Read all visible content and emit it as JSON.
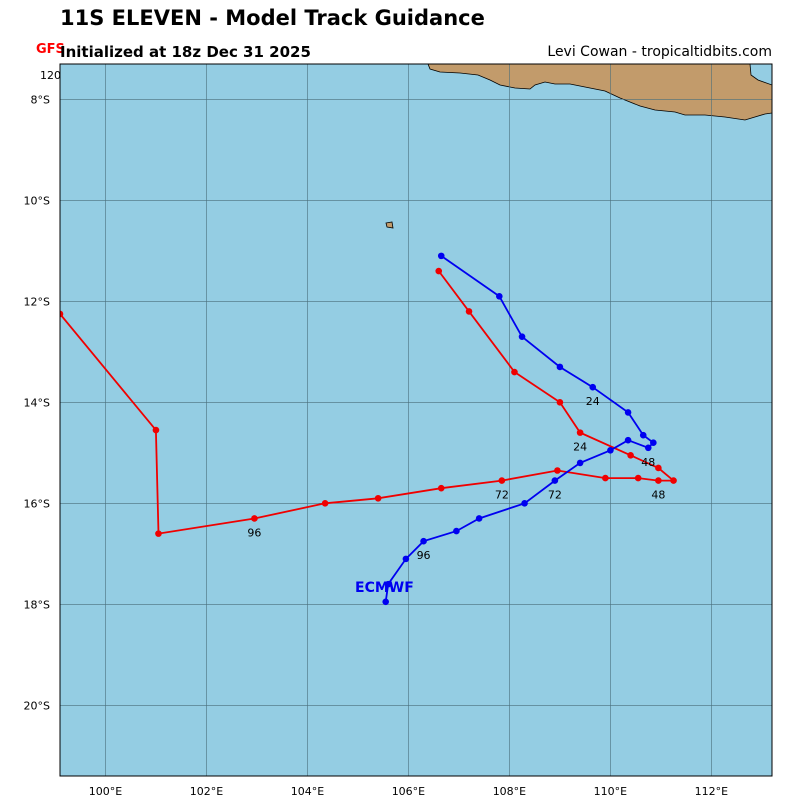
{
  "header": {
    "title": "11S ELEVEN - Model Track Guidance",
    "subtitle": "Initialized at 18z Dec 31 2025",
    "credit": "Levi Cowan - tropicaltidbits.com",
    "gfs_tag": "GFS",
    "partial_label": "120"
  },
  "colors": {
    "ocean": "#94cde3",
    "land": "#c29b6b",
    "gfs": "#f00000",
    "ecmwf": "#0000f0"
  },
  "chart_data": {
    "type": "map-track",
    "lon_range": [
      99.1,
      113.2
    ],
    "lat_range": [
      -21.4,
      -7.3
    ],
    "lon_ticks": [
      100,
      102,
      104,
      106,
      108,
      110,
      112
    ],
    "lon_tick_labels": [
      "100°E",
      "102°E",
      "104°E",
      "106°E",
      "108°E",
      "110°E",
      "112°E"
    ],
    "lat_ticks": [
      -8,
      -10,
      -12,
      -14,
      -16,
      -18,
      -20
    ],
    "lat_tick_labels": [
      "8°S",
      "10°S",
      "12°S",
      "14°S",
      "16°S",
      "18°S",
      "20°S"
    ],
    "grid": true,
    "series": [
      {
        "name": "GFS",
        "color": "#f00000",
        "points": [
          [
            106.6,
            -11.4
          ],
          [
            107.2,
            -12.2
          ],
          [
            108.1,
            -13.4
          ],
          [
            109.0,
            -14.0
          ],
          [
            109.4,
            -14.6
          ],
          [
            110.4,
            -15.05
          ],
          [
            110.95,
            -15.3
          ],
          [
            111.25,
            -15.55
          ],
          [
            110.95,
            -15.55
          ],
          [
            110.55,
            -15.5
          ],
          [
            109.9,
            -15.5
          ],
          [
            108.95,
            -15.35
          ],
          [
            107.85,
            -15.55
          ],
          [
            106.65,
            -15.7
          ],
          [
            105.4,
            -15.9
          ],
          [
            104.35,
            -16.0
          ],
          [
            102.95,
            -16.3
          ],
          [
            101.05,
            -16.6
          ],
          [
            101.0,
            -14.55
          ],
          [
            99.1,
            -12.25
          ]
        ],
        "hour_labels": [
          {
            "text": "24",
            "point": [
              109.4,
              -14.6
            ]
          },
          {
            "text": "48",
            "point": [
              110.95,
              -15.55
            ]
          },
          {
            "text": "72",
            "point": [
              107.85,
              -15.55
            ]
          },
          {
            "text": "96",
            "point": [
              102.95,
              -16.3
            ]
          }
        ]
      },
      {
        "name": "ECMWF",
        "label": "ECMWF",
        "color": "#0000f0",
        "points": [
          [
            106.65,
            -11.1
          ],
          [
            107.8,
            -11.9
          ],
          [
            108.25,
            -12.7
          ],
          [
            109.0,
            -13.3
          ],
          [
            109.65,
            -13.7
          ],
          [
            110.35,
            -14.2
          ],
          [
            110.65,
            -14.65
          ],
          [
            110.85,
            -14.8
          ],
          [
            110.75,
            -14.9
          ],
          [
            110.35,
            -14.75
          ],
          [
            110.0,
            -14.95
          ],
          [
            109.4,
            -15.2
          ],
          [
            108.9,
            -15.55
          ],
          [
            108.3,
            -16.0
          ],
          [
            107.4,
            -16.3
          ],
          [
            106.95,
            -16.55
          ],
          [
            106.3,
            -16.75
          ],
          [
            105.95,
            -17.1
          ],
          [
            105.6,
            -17.6
          ],
          [
            105.55,
            -17.95
          ]
        ],
        "hour_labels": [
          {
            "text": "24",
            "point": [
              109.65,
              -13.7
            ]
          },
          {
            "text": "48",
            "point": [
              110.75,
              -14.9
            ]
          },
          {
            "text": "72",
            "point": [
              108.9,
              -15.55
            ]
          },
          {
            "text": "96",
            "point": [
              106.3,
              -16.75
            ]
          }
        ]
      }
    ]
  }
}
